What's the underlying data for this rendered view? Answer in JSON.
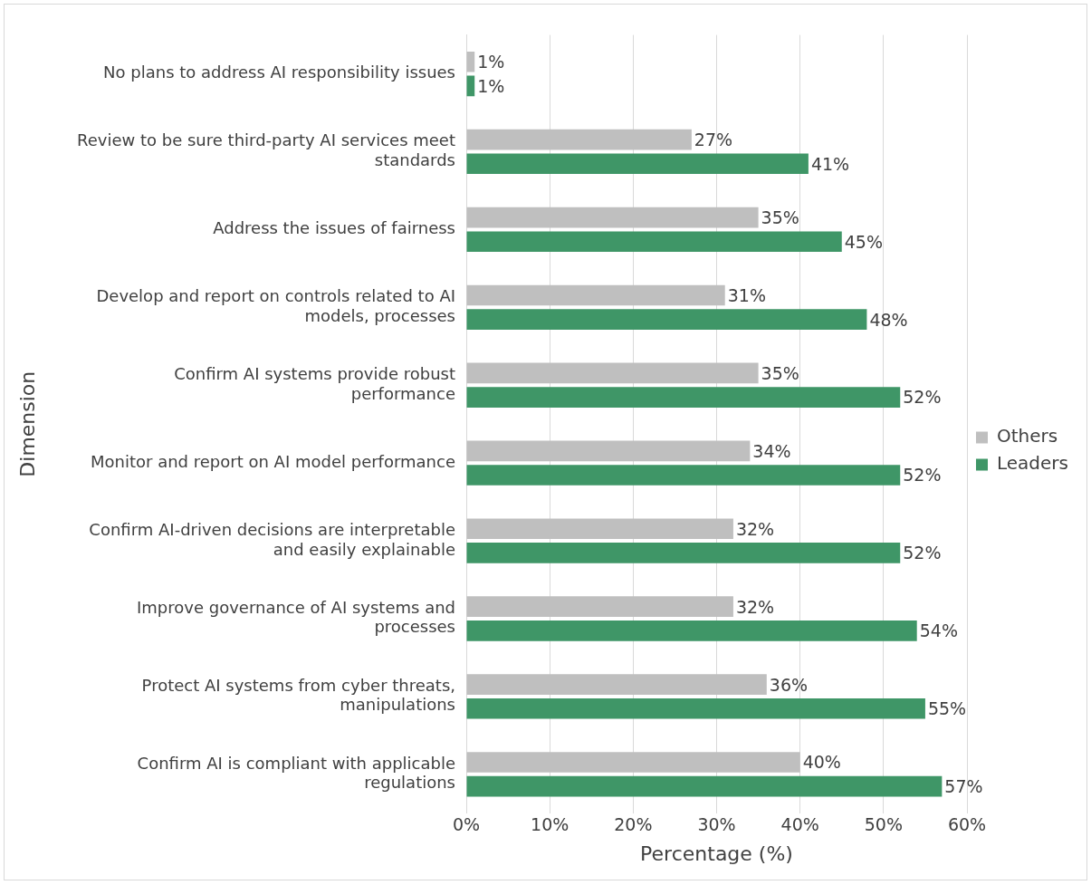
{
  "chart_data": {
    "type": "bar",
    "orientation": "horizontal",
    "xlabel": "Percentage (%)",
    "ylabel": "Dimension",
    "categories": [
      "No plans to address AI responsibility issues",
      "Review to be sure third-party AI services meet standards",
      "Address the issues of fairness",
      "Develop and report on controls related to AI models, processes",
      "Confirm AI systems provide robust performance",
      "Monitor and report on AI model performance",
      "Confirm AI-driven decisions are interpretable and easily explainable",
      "Improve governance of AI systems and processes",
      "Protect AI systems from cyber threats, manipulations",
      "Confirm AI is compliant with applicable regulations"
    ],
    "series": [
      {
        "name": "Others",
        "color": "#bfbfbf",
        "values": [
          1,
          27,
          35,
          31,
          35,
          34,
          32,
          32,
          36,
          40
        ],
        "value_labels": [
          "1%",
          "27%",
          "35%",
          "31%",
          "35%",
          "34%",
          "32%",
          "32%",
          "36%",
          "40%"
        ]
      },
      {
        "name": "Leaders",
        "color": "#3f9667",
        "values": [
          1,
          41,
          45,
          48,
          52,
          52,
          52,
          54,
          55,
          57
        ],
        "value_labels": [
          "1%",
          "41%",
          "45%",
          "48%",
          "52%",
          "52%",
          "52%",
          "54%",
          "55%",
          "57%"
        ]
      }
    ],
    "xlim": [
      0,
      60
    ],
    "xticks": [
      {
        "value": 0,
        "label": "0%"
      },
      {
        "value": 10,
        "label": "10%"
      },
      {
        "value": 20,
        "label": "20%"
      },
      {
        "value": 30,
        "label": "30%"
      },
      {
        "value": 40,
        "label": "40%"
      },
      {
        "value": 50,
        "label": "50%"
      },
      {
        "value": 60,
        "label": "60%"
      }
    ],
    "grid": "x",
    "legend": "right"
  }
}
